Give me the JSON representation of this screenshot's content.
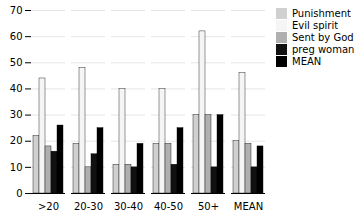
{
  "chart_data": {
    "type": "bar",
    "categories": [
      ">20",
      "20-30",
      "30-40",
      "40-50",
      "50+",
      "MEAN"
    ],
    "series": [
      {
        "name": "Punishment",
        "color": "#d0d0d0",
        "values": [
          22,
          19,
          11,
          19,
          30,
          20
        ]
      },
      {
        "name": "Evil spirit",
        "color": "#f5f5f5",
        "values": [
          44,
          48,
          40,
          40,
          62,
          46
        ]
      },
      {
        "name": "Sent by God",
        "color": "#b0b0b0",
        "values": [
          18,
          10,
          11,
          19,
          30,
          19
        ]
      },
      {
        "name": "preg woman",
        "color": "#111111",
        "values": [
          16,
          15,
          10,
          11,
          10,
          10
        ]
      },
      {
        "name": "MEAN",
        "color": "#000000",
        "values": [
          26,
          25,
          19,
          25,
          30,
          18
        ]
      }
    ],
    "ylim": [
      0,
      70
    ],
    "yticks": [
      0,
      10,
      20,
      30,
      40,
      50,
      60,
      70
    ],
    "grid": true,
    "legend": "right"
  }
}
